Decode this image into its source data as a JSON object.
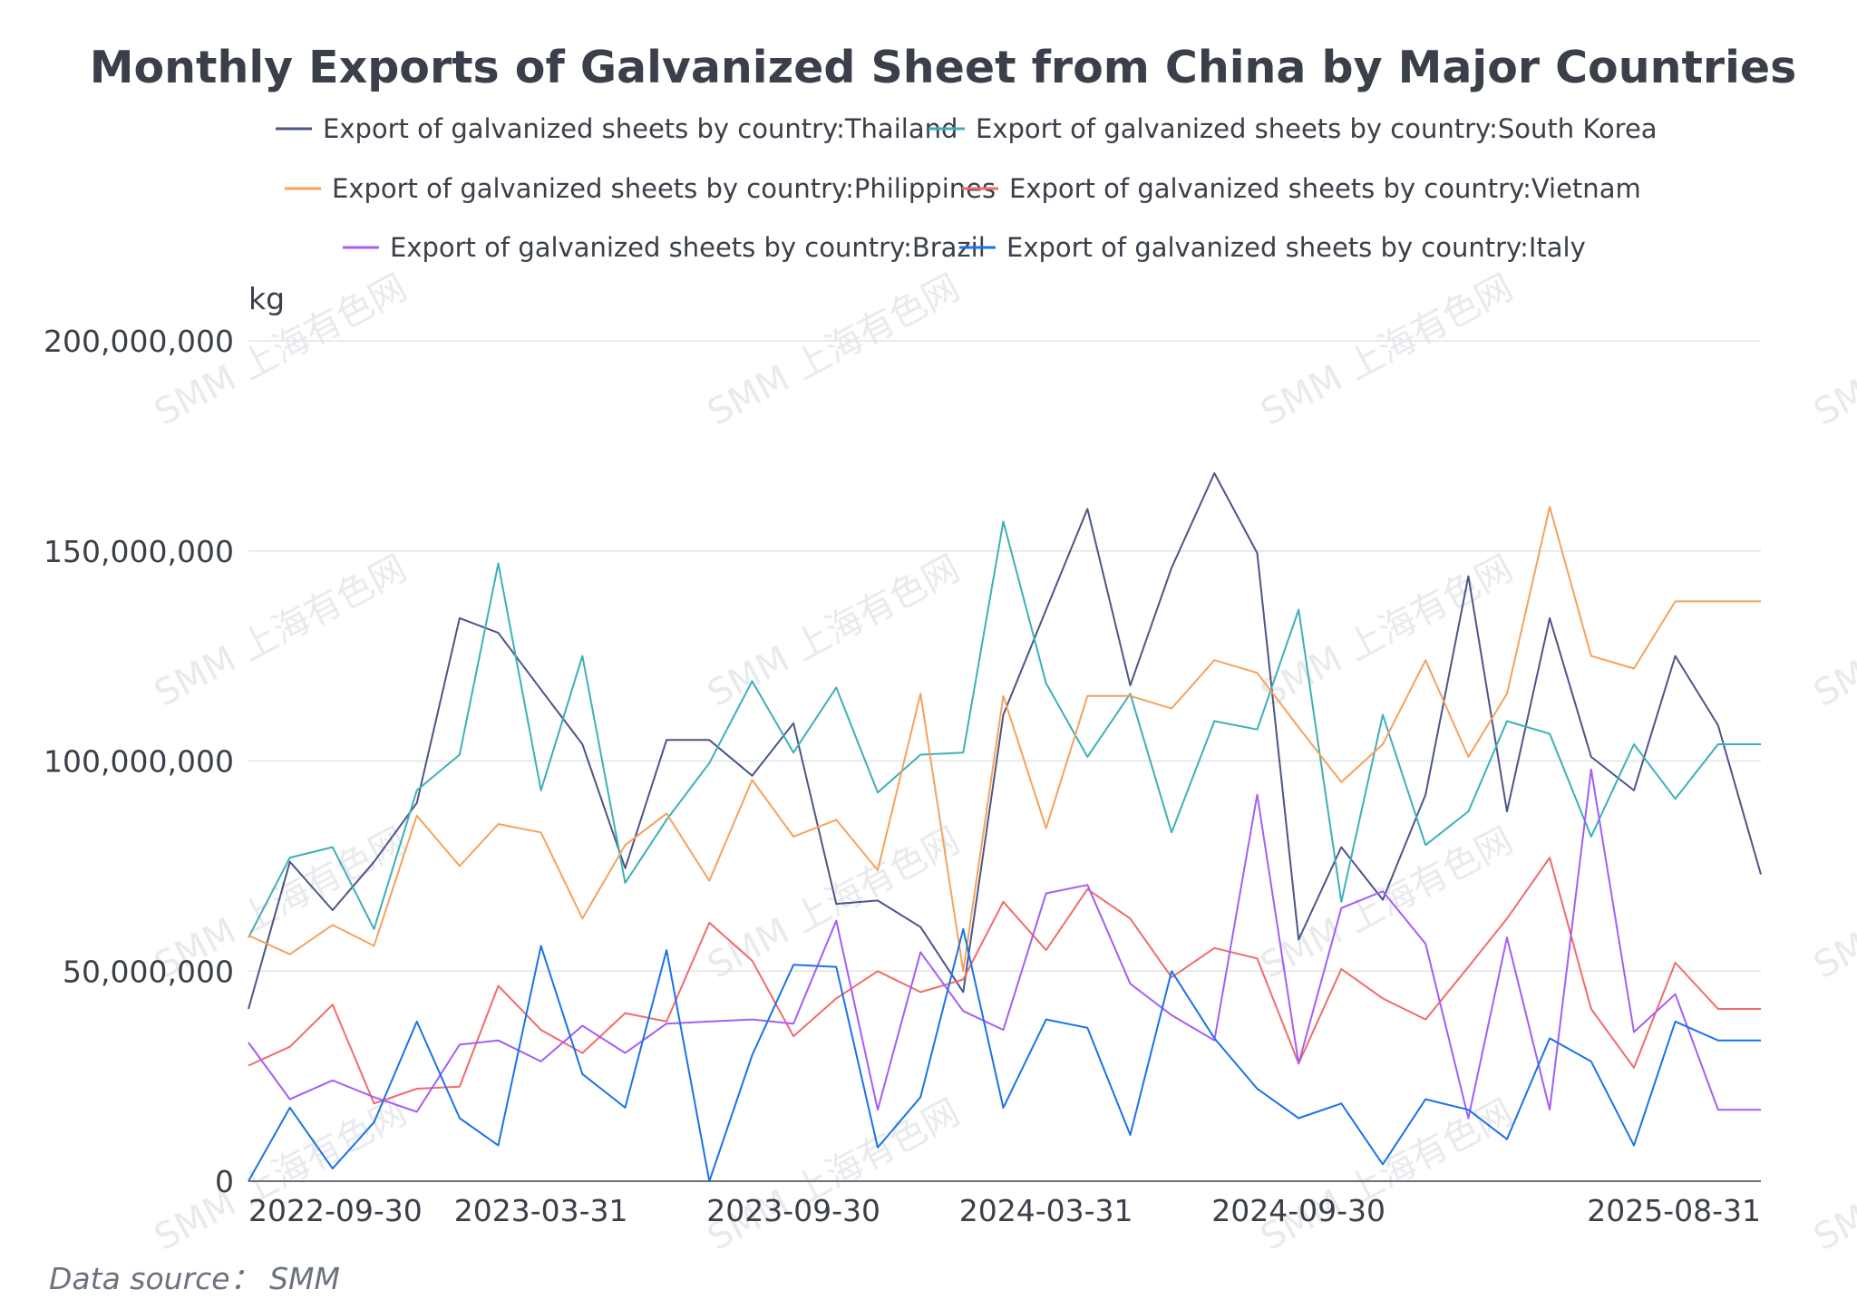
{
  "chart_data": {
    "type": "line",
    "title": "Monthly Exports of Galvanized Sheet from China by Major Countries",
    "ylabel": "kg",
    "xlabel": "",
    "ylim": [
      0,
      200000000
    ],
    "y_ticks": [
      0,
      50000000,
      100000000,
      150000000,
      200000000
    ],
    "y_tick_labels": [
      "0",
      "50,000,000",
      "100,000,000",
      "150,000,000",
      "200,000,000"
    ],
    "x_tick_labels": [
      "2022-09-30",
      "2023-03-31",
      "2023-09-30",
      "2024-03-31",
      "2024-09-30",
      "2025-08-31"
    ],
    "x_tick_dates": [
      "2022-09-30",
      "2023-03-31",
      "2023-09-30",
      "2024-03-31",
      "2024-09-30",
      "2025-08-31"
    ],
    "grid": true,
    "legend_position": "top",
    "source": "Data source： SMM",
    "watermark": "SMM 上海有色网",
    "x": [
      "2022-08-31",
      "2022-09-30",
      "2022-10-31",
      "2022-11-30",
      "2022-12-31",
      "2023-01-31",
      "2023-02-28",
      "2023-03-31",
      "2023-04-30",
      "2023-05-31",
      "2023-06-30",
      "2023-07-31",
      "2023-08-31",
      "2023-09-30",
      "2023-10-31",
      "2023-11-30",
      "2023-12-31",
      "2024-01-31",
      "2024-02-29",
      "2024-03-31",
      "2024-04-30",
      "2024-05-31",
      "2024-06-30",
      "2024-07-31",
      "2024-08-31",
      "2024-09-30",
      "2024-10-31",
      "2024-11-30",
      "2024-12-31",
      "2025-01-31",
      "2025-02-28",
      "2025-03-31",
      "2025-04-30",
      "2025-05-31",
      "2025-06-30",
      "2025-07-31",
      "2025-08-31"
    ],
    "series": [
      {
        "name": "Export of galvanized sheets by country:Thailand",
        "color": "#4c5587",
        "values": [
          41000000,
          76000000,
          64500000,
          76000000,
          90000000,
          134000000,
          130500000,
          117000000,
          104000000,
          74500000,
          105000000,
          105000000,
          96500000,
          109000000,
          66000000,
          66800000,
          60500000,
          45000000,
          111000000,
          136000000,
          160000000,
          118000000,
          146000000,
          168500000,
          149500000,
          57500000,
          79500000,
          67000000,
          92000000,
          144000000,
          88000000,
          134000000,
          101000000,
          93000000,
          125000000,
          108500000,
          73000000
        ]
      },
      {
        "name": "Export of galvanized sheets by country:South Korea",
        "color": "#3cb0b8",
        "values": [
          58000000,
          77000000,
          79500000,
          60000000,
          93000000,
          101500000,
          147000000,
          93000000,
          125000000,
          71000000,
          86000000,
          99500000,
          119000000,
          102000000,
          117500000,
          92500000,
          101500000,
          102000000,
          157000000,
          118500000,
          101000000,
          116000000,
          83000000,
          109500000,
          107500000,
          136000000,
          66500000,
          111000000,
          80000000,
          88000000,
          109500000,
          106500000,
          82000000,
          104000000,
          91000000,
          104000000,
          104000000
        ]
      },
      {
        "name": "Export of galvanized sheets by country:Philippines",
        "color": "#f5a25d",
        "values": [
          58500000,
          54000000,
          61000000,
          56000000,
          87000000,
          75000000,
          85000000,
          83000000,
          62500000,
          80000000,
          87500000,
          71500000,
          95500000,
          82000000,
          86000000,
          74000000,
          116000000,
          50000000,
          115500000,
          84000000,
          115500000,
          115500000,
          112500000,
          124000000,
          121000000,
          108000000,
          95000000,
          104000000,
          124000000,
          101000000,
          116000000,
          160500000,
          125000000,
          122000000,
          138000000,
          138000000,
          138000000
        ]
      },
      {
        "name": "Export of galvanized sheets by country:Vietnam",
        "color": "#f26b6b",
        "values": [
          27500000,
          32000000,
          42000000,
          18500000,
          22000000,
          22500000,
          46500000,
          36000000,
          30500000,
          40000000,
          38000000,
          61500000,
          52500000,
          34500000,
          43500000,
          50000000,
          45000000,
          48000000,
          66500000,
          55000000,
          69500000,
          62500000,
          48500000,
          55500000,
          53000000,
          28000000,
          50500000,
          43500000,
          38500000,
          51000000,
          62500000,
          77000000,
          41000000,
          27000000,
          52000000,
          41000000,
          41000000
        ]
      },
      {
        "name": "Export of galvanized sheets by country:Brazil",
        "color": "#a55df5",
        "values": [
          33000000,
          19500000,
          24000000,
          20000000,
          16500000,
          32500000,
          33500000,
          28500000,
          37000000,
          30500000,
          37500000,
          38000000,
          38500000,
          37500000,
          62000000,
          17000000,
          54500000,
          40500000,
          36000000,
          68500000,
          70500000,
          47000000,
          39500000,
          33500000,
          92000000,
          28000000,
          65000000,
          69000000,
          56500000,
          15000000,
          58000000,
          17000000,
          98000000,
          35500000,
          44500000,
          17000000,
          17000000
        ]
      },
      {
        "name": "Export of galvanized sheets by country:Italy",
        "color": "#1a73e8",
        "values": [
          0,
          17500000,
          3000000,
          14000000,
          38000000,
          15000000,
          8500000,
          56000000,
          25500000,
          17500000,
          55000000,
          0,
          30000000,
          51500000,
          51000000,
          8000000,
          20000000,
          60000000,
          17500000,
          38500000,
          36500000,
          11000000,
          50000000,
          34000000,
          22000000,
          15000000,
          18500000,
          4000000,
          19500000,
          17000000,
          10000000,
          34000000,
          28500000,
          8500000,
          38000000,
          33500000,
          33500000
        ]
      }
    ]
  }
}
